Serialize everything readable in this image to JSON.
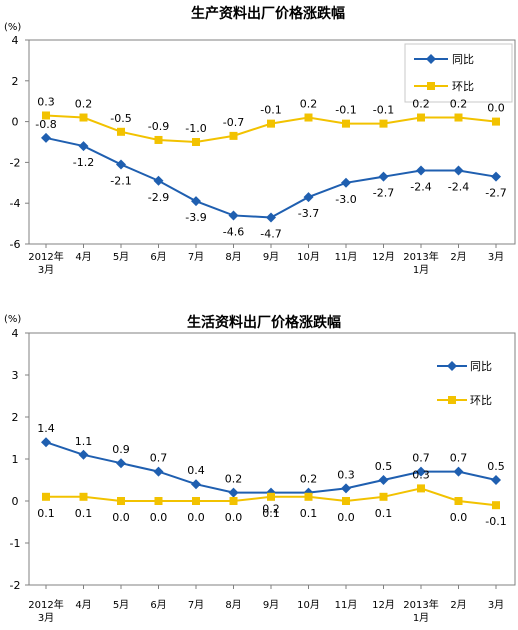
{
  "charts": [
    {
      "title": "生产资料出厂价格涨跌幅",
      "unit": "(%)",
      "legend": [
        "同比",
        "环比"
      ]
    },
    {
      "title": "生活资料出厂价格涨跌幅",
      "unit": "(%)",
      "legend": [
        "同比",
        "环比"
      ]
    }
  ],
  "chart_data": [
    {
      "type": "line",
      "title": "生产资料出厂价格涨跌幅",
      "ylabel": "(%)",
      "ylim": [
        -6,
        4
      ],
      "yticks": [
        "4",
        "2",
        "0",
        "-2",
        "-4",
        "-6"
      ],
      "categories": [
        [
          "2012年",
          "3月"
        ],
        [
          "4月"
        ],
        [
          "5月"
        ],
        [
          "6月"
        ],
        [
          "7月"
        ],
        [
          "8月"
        ],
        [
          "9月"
        ],
        [
          "10月"
        ],
        [
          "11月"
        ],
        [
          "12月"
        ],
        [
          "2013年",
          "1月"
        ],
        [
          "2月"
        ],
        [
          "3月"
        ]
      ],
      "legend_position": "top-right",
      "grid": false,
      "series": [
        {
          "name": "同比",
          "color": "#1f5fb0",
          "marker": "diamond",
          "values": [
            -0.8,
            -1.2,
            -2.1,
            -2.9,
            -3.9,
            -4.6,
            -4.7,
            -3.7,
            -3.0,
            -2.7,
            -2.4,
            -2.4,
            -2.7
          ],
          "labels": [
            "-0.8",
            "-1.2",
            "-2.1",
            "-2.9",
            "-3.9",
            "-4.6",
            "-4.7",
            "-3.7",
            "-3.0",
            "-2.7",
            "-2.4",
            "-2.4",
            "-2.7"
          ]
        },
        {
          "name": "环比",
          "color": "#f2c200",
          "marker": "square",
          "values": [
            0.3,
            0.2,
            -0.5,
            -0.9,
            -1.0,
            -0.7,
            -0.1,
            0.2,
            -0.1,
            -0.1,
            0.2,
            0.2,
            0.0
          ],
          "labels": [
            "0.3",
            "0.2",
            "-0.5",
            "-0.9",
            "-1.0",
            "-0.7",
            "-0.1",
            "0.2",
            "-0.1",
            "-0.1",
            "0.2",
            "0.2",
            "0.0"
          ]
        }
      ]
    },
    {
      "type": "line",
      "title": "生活资料出厂价格涨跌幅",
      "ylabel": "(%)",
      "ylim": [
        -2,
        4
      ],
      "yticks": [
        "4",
        "3",
        "2",
        "1",
        "0",
        "-1",
        "-2"
      ],
      "categories": [
        [
          "2012年",
          "3月"
        ],
        [
          "4月"
        ],
        [
          "5月"
        ],
        [
          "6月"
        ],
        [
          "7月"
        ],
        [
          "8月"
        ],
        [
          "9月"
        ],
        [
          "10月"
        ],
        [
          "11月"
        ],
        [
          "12月"
        ],
        [
          "2013年",
          "1月"
        ],
        [
          "2月"
        ],
        [
          "3月"
        ]
      ],
      "legend_position": "top-right",
      "grid": false,
      "series": [
        {
          "name": "同比",
          "color": "#1f5fb0",
          "marker": "diamond",
          "values": [
            1.4,
            1.1,
            0.9,
            0.7,
            0.4,
            0.2,
            0.2,
            0.2,
            0.3,
            0.5,
            0.7,
            0.7,
            0.5
          ],
          "labels": [
            "1.4",
            "1.1",
            "0.9",
            "0.7",
            "0.4",
            "0.2",
            "0.2",
            "0.2",
            "0.3",
            "0.5",
            "0.7",
            "0.7",
            "0.5"
          ]
        },
        {
          "name": "环比",
          "color": "#f2c200",
          "marker": "square",
          "values": [
            0.1,
            0.1,
            0.0,
            0.0,
            0.0,
            0.0,
            0.1,
            0.1,
            0.0,
            0.1,
            0.3,
            0.0,
            -0.1
          ],
          "labels": [
            "0.1",
            "0.1",
            "0.0",
            "0.0",
            "0.0",
            "0.0",
            "0.1",
            "0.1",
            "0.0",
            "0.1",
            "0.3",
            "0.0",
            "-0.1"
          ]
        }
      ]
    }
  ]
}
